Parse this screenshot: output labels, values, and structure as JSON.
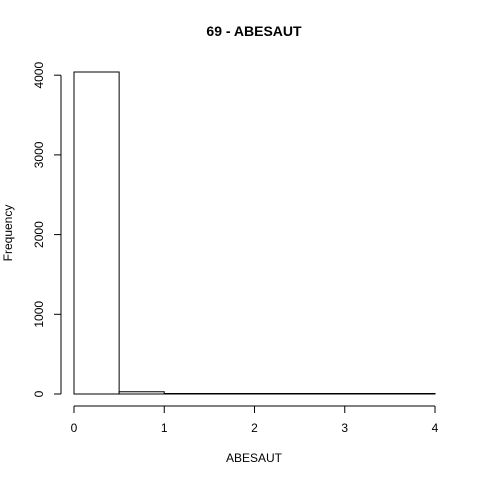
{
  "chart_data": {
    "type": "bar",
    "title": "69 - ABESAUT",
    "xlabel": "ABESAUT",
    "ylabel": "Frequency",
    "bins": [
      {
        "x0": 0.0,
        "x1": 0.5,
        "count": 4040
      },
      {
        "x0": 0.5,
        "x1": 1.0,
        "count": 28
      },
      {
        "x0": 1.0,
        "x1": 1.5,
        "count": 4
      },
      {
        "x0": 1.5,
        "x1": 2.0,
        "count": 2
      },
      {
        "x0": 2.0,
        "x1": 2.5,
        "count": 2
      },
      {
        "x0": 2.5,
        "x1": 3.0,
        "count": 2
      },
      {
        "x0": 3.0,
        "x1": 3.5,
        "count": 1
      },
      {
        "x0": 3.5,
        "x1": 4.0,
        "count": 1
      }
    ],
    "xticks": [
      0,
      1,
      2,
      3,
      4
    ],
    "xtick_labels": [
      "0",
      "1",
      "2",
      "3",
      "4"
    ],
    "yticks": [
      0,
      1000,
      2000,
      3000,
      4000
    ],
    "ytick_labels": [
      "0",
      "1000",
      "2000",
      "3000",
      "4000"
    ],
    "xlim": [
      0,
      4
    ],
    "ylim": [
      0,
      4040
    ],
    "grid": false,
    "colors": {
      "bar_fill": "#ffffff",
      "bar_stroke": "#000000",
      "axis": "#000000",
      "text": "#000000"
    }
  }
}
